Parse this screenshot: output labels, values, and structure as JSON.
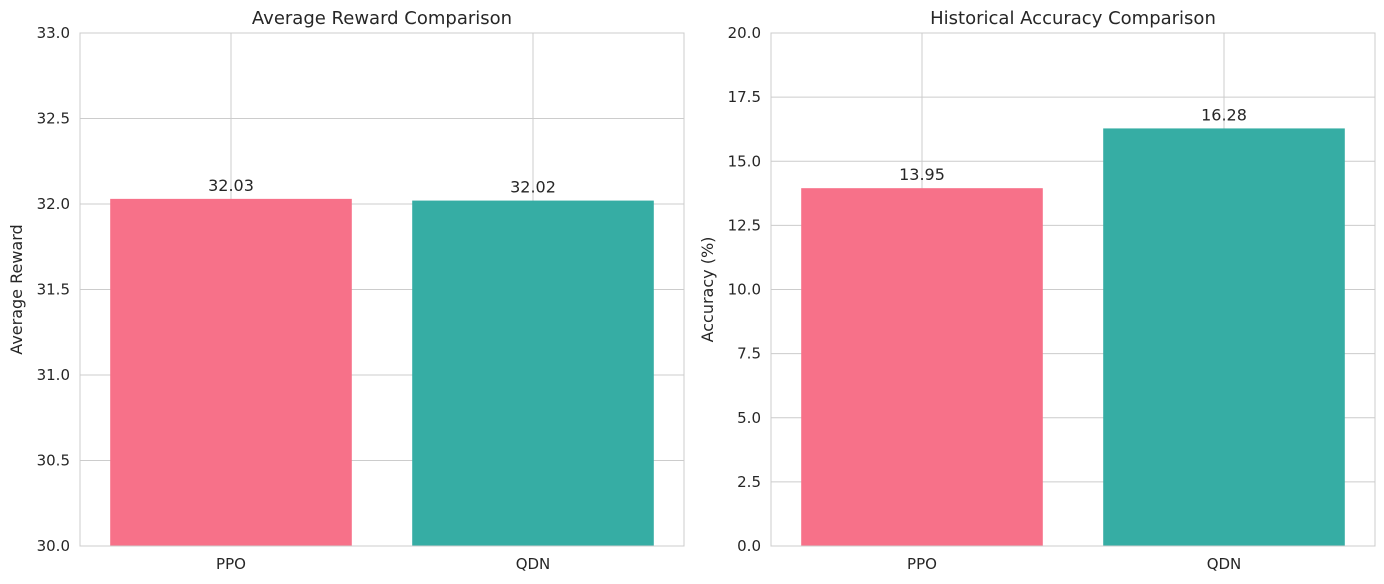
{
  "colors": {
    "bar_1": "#f77189",
    "bar_2": "#36ada4",
    "grid": "#cccccc",
    "text": "#262626"
  },
  "chart_data": [
    {
      "type": "bar",
      "title": "Average Reward Comparison",
      "xlabel": "",
      "ylabel": "Average Reward",
      "categories": [
        "PPO",
        "QDN"
      ],
      "values": [
        32.03,
        32.02
      ],
      "data_labels": [
        "32.03",
        "32.02"
      ],
      "ylim": [
        30.0,
        33.0
      ],
      "yticks": [
        "30.0",
        "30.5",
        "31.0",
        "31.5",
        "32.0",
        "32.5",
        "33.0"
      ],
      "grid": true,
      "legend": "none"
    },
    {
      "type": "bar",
      "title": "Historical Accuracy Comparison",
      "xlabel": "",
      "ylabel": "Accuracy (%)",
      "categories": [
        "PPO",
        "QDN"
      ],
      "values": [
        13.95,
        16.28
      ],
      "data_labels": [
        "13.95",
        "16.28"
      ],
      "ylim": [
        0.0,
        20.0
      ],
      "yticks": [
        "0.0",
        "2.5",
        "5.0",
        "7.5",
        "10.0",
        "12.5",
        "15.0",
        "17.5",
        "20.0"
      ],
      "grid": true,
      "legend": "none"
    }
  ]
}
